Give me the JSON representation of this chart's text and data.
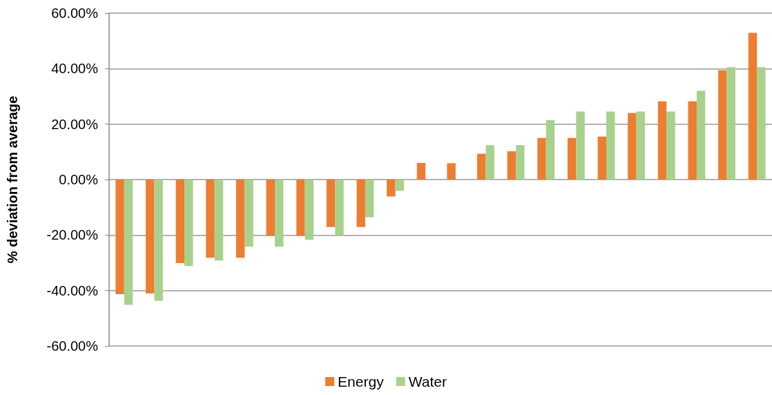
{
  "chart_data": {
    "type": "bar",
    "ylabel": "% deviation from average",
    "categories": [
      null,
      null,
      null,
      null,
      null,
      null,
      null,
      null,
      null,
      null,
      null,
      null,
      null,
      null,
      null,
      null,
      null,
      null,
      null,
      null,
      null,
      null
    ],
    "series": [
      {
        "name": "Energy",
        "color": "#ed7d31",
        "values": [
          -41.3,
          -41.1,
          -30.1,
          -28.2,
          -28.2,
          -20.3,
          -20.3,
          -17.1,
          -17.1,
          -6.1,
          6.0,
          5.9,
          9.3,
          10.2,
          15.0,
          15.0,
          15.5,
          24.0,
          28.2,
          28.2,
          39.4,
          52.9
        ]
      },
      {
        "name": "Water",
        "color": "#a9d18e",
        "values": [
          -45.2,
          -43.7,
          -31.2,
          -29.2,
          -24.2,
          -24.2,
          -21.7,
          -20.1,
          -13.6,
          -4.1,
          0,
          0,
          12.4,
          12.4,
          21.5,
          24.5,
          24.5,
          24.5,
          24.5,
          32.0,
          40.5,
          40.5
        ]
      }
    ],
    "ylim": [
      -60,
      60
    ],
    "yticks": [
      {
        "value": -60,
        "label": "-60.00%"
      },
      {
        "value": -40,
        "label": "-40.00%"
      },
      {
        "value": -20,
        "label": "-20.00%"
      },
      {
        "value": 0,
        "label": "0.00%"
      },
      {
        "value": 20,
        "label": "20.00%"
      },
      {
        "value": 40,
        "label": "40.00%"
      },
      {
        "value": 60,
        "label": "60.00%"
      }
    ],
    "grid": "y",
    "legend": "bottom"
  }
}
